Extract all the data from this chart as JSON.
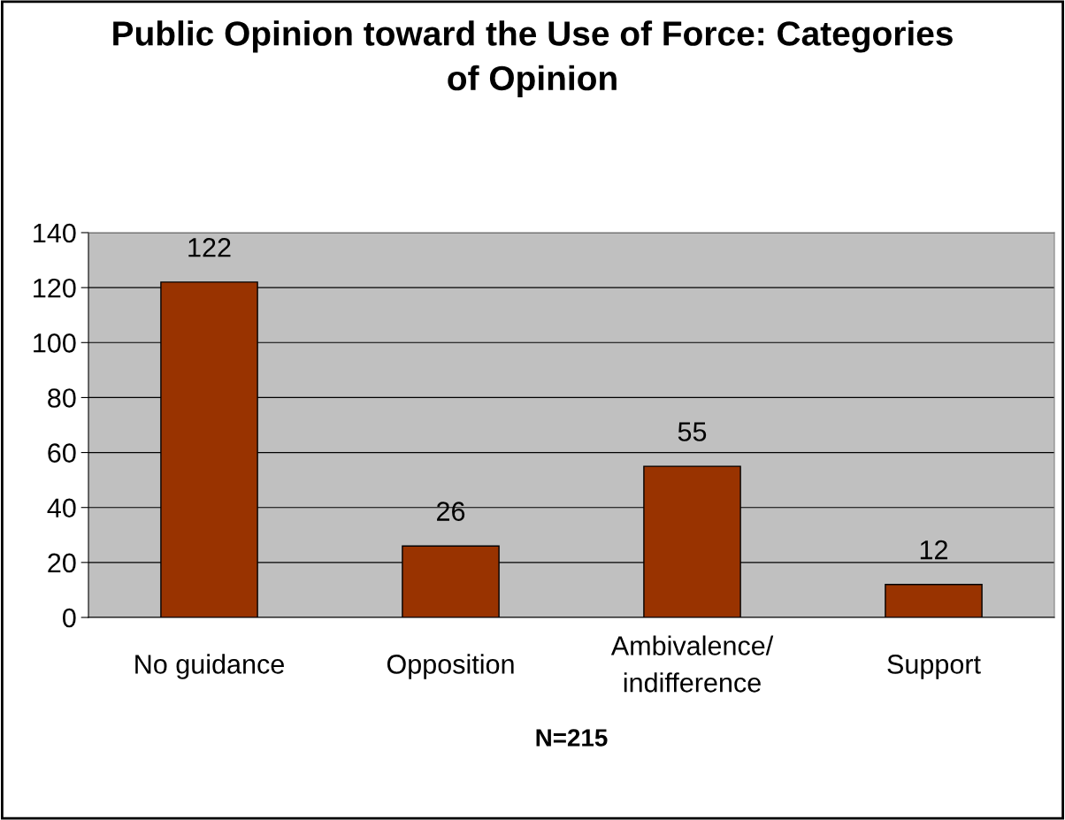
{
  "chart_data": {
    "type": "bar",
    "title": "Public Opinion toward the Use of Force: Categories\nof Opinion",
    "xlabel": "N=215",
    "categories": [
      "No guidance",
      "Opposition",
      "Ambivalence/\nindifference",
      "Support"
    ],
    "values": [
      122,
      26,
      55,
      12
    ],
    "color": "#993300",
    "ylim": [
      0,
      140
    ],
    "yticks": [
      0,
      20,
      40,
      60,
      80,
      100,
      120,
      140
    ],
    "grid": "y",
    "data_labels": true
  }
}
